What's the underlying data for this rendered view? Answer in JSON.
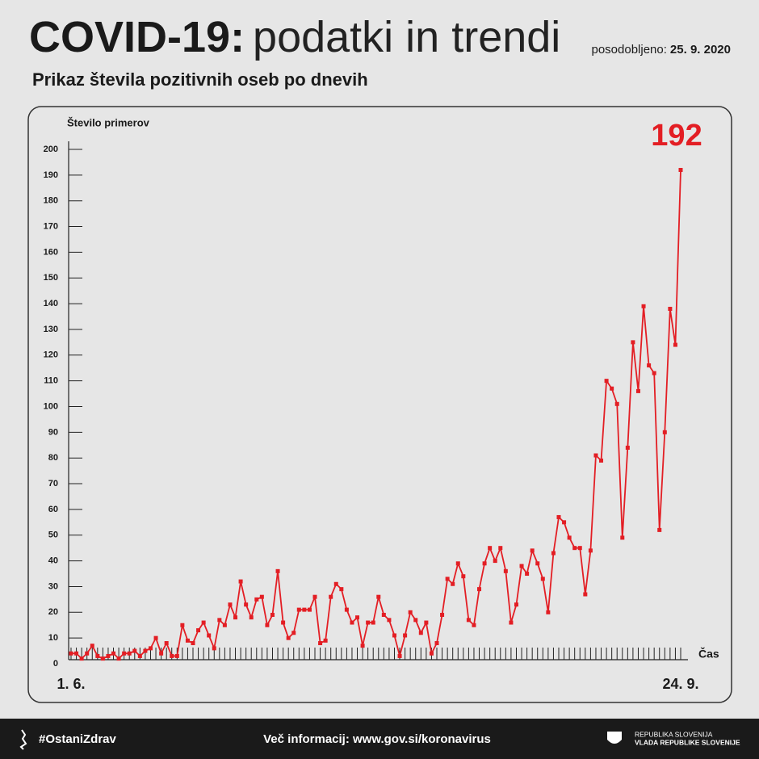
{
  "chart_data": {
    "type": "line",
    "title": "COVID-19:",
    "title_rest": "podatki in trendi",
    "updated_label": "posodobljeno:",
    "updated_date": "25. 9. 2020",
    "subtitle": "Prikaz števila pozitivnih oseb po dnevih",
    "ylabel": "Število primerov",
    "xlabel": "Čas",
    "color": "#e31e24",
    "categories": [
      "1. 6.",
      null,
      null,
      null,
      null,
      null,
      null,
      null,
      null,
      null,
      null,
      null,
      null,
      null,
      null,
      null,
      null,
      null,
      null,
      null,
      null,
      null,
      null,
      null,
      null,
      null,
      null,
      null,
      null,
      null,
      null,
      null,
      null,
      null,
      null,
      null,
      null,
      null,
      null,
      null,
      null,
      null,
      null,
      null,
      null,
      null,
      null,
      null,
      null,
      null,
      null,
      null,
      null,
      null,
      null,
      null,
      null,
      null,
      null,
      null,
      null,
      null,
      null,
      null,
      null,
      null,
      null,
      null,
      null,
      null,
      null,
      null,
      null,
      null,
      null,
      null,
      null,
      null,
      null,
      null,
      null,
      null,
      null,
      null,
      null,
      null,
      null,
      null,
      null,
      null,
      null,
      null,
      null,
      null,
      null,
      null,
      null,
      null,
      null,
      null,
      null,
      null,
      null,
      null,
      null,
      null,
      null,
      null,
      null,
      null,
      null,
      null,
      null,
      null,
      null,
      "24. 9."
    ],
    "values": [
      4,
      4,
      2,
      4,
      7,
      3,
      2,
      3,
      4,
      2,
      4,
      4,
      5,
      3,
      5,
      6,
      10,
      4,
      8,
      3,
      3,
      15,
      9,
      8,
      13,
      16,
      11,
      6,
      17,
      15,
      23,
      18,
      32,
      23,
      18,
      25,
      26,
      15,
      19,
      36,
      16,
      10,
      12,
      21,
      21,
      21,
      26,
      8,
      9,
      26,
      31,
      29,
      21,
      16,
      18,
      7,
      16,
      16,
      26,
      19,
      17,
      11,
      3,
      11,
      20,
      17,
      12,
      16,
      4,
      8,
      19,
      33,
      31,
      39,
      34,
      17,
      15,
      29,
      39,
      45,
      40,
      45,
      36,
      16,
      23,
      38,
      35,
      44,
      39,
      33,
      20,
      43,
      57,
      55,
      49,
      45,
      45,
      27,
      44,
      81,
      79,
      110,
      107,
      101,
      49,
      84,
      125,
      106,
      139,
      116,
      113,
      52,
      90,
      138,
      124,
      192
    ],
    "ylim": [
      0,
      200
    ],
    "yticks": [
      0,
      10,
      20,
      30,
      40,
      50,
      60,
      70,
      80,
      90,
      100,
      110,
      120,
      130,
      140,
      150,
      160,
      170,
      180,
      190,
      200
    ]
  },
  "footer": {
    "hashtag": "#OstaniZdrav",
    "info": "Več informacij: www.gov.si/koronavirus",
    "gov_line1": "REPUBLIKA SLOVENIJA",
    "gov_line2": "VLADA REPUBLIKE SLOVENIJE"
  }
}
